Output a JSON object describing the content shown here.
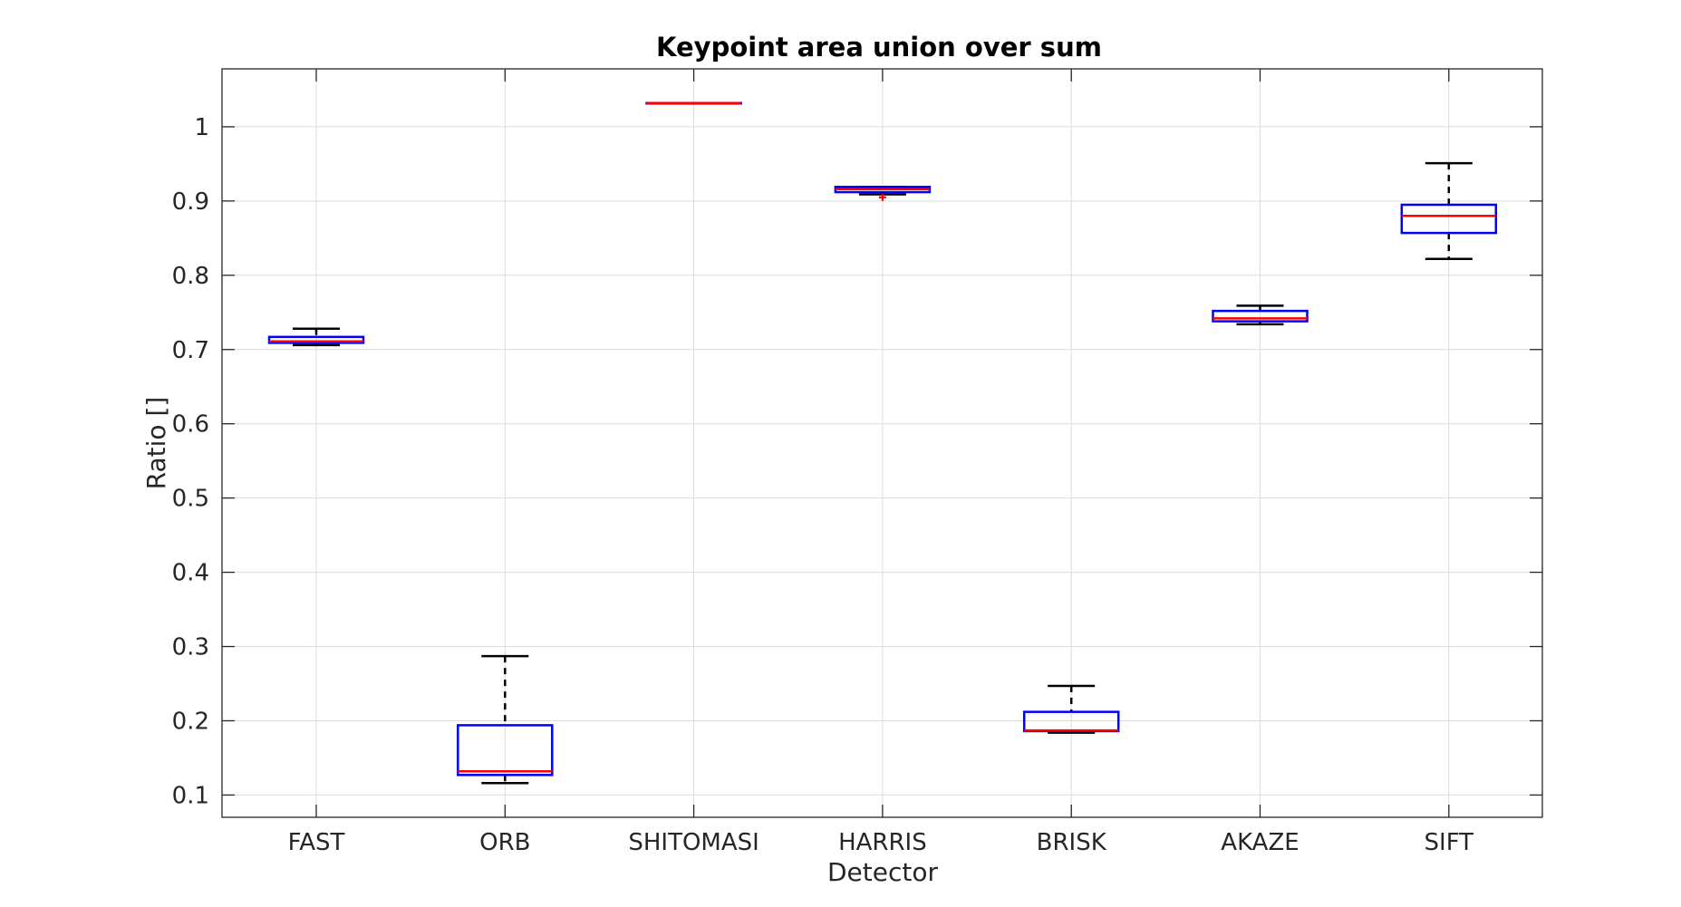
{
  "chart_data": {
    "type": "box",
    "title": "Keypoint area union over sum",
    "xlabel": "Detector",
    "ylabel": "Ratio []",
    "ylim": [
      0.07,
      1.078
    ],
    "yticks": [
      0.1,
      0.2,
      0.3,
      0.4,
      0.5,
      0.6,
      0.7,
      0.8,
      0.9,
      1
    ],
    "ytick_labels": [
      "0.1",
      "0.2",
      "0.3",
      "0.4",
      "0.5",
      "0.6",
      "0.7",
      "0.8",
      "0.9",
      "1"
    ],
    "grid": true,
    "categories": [
      "FAST",
      "ORB",
      "SHITOMASI",
      "HARRIS",
      "BRISK",
      "AKAZE",
      "SIFT"
    ],
    "boxes": [
      {
        "whisker_low": 0.706,
        "q1": 0.709,
        "median": 0.711,
        "q3": 0.717,
        "whisker_high": 0.728,
        "outliers": []
      },
      {
        "whisker_low": 0.116,
        "q1": 0.127,
        "median": 0.132,
        "q3": 0.194,
        "whisker_high": 0.287,
        "outliers": []
      },
      {
        "whisker_low": 1.032,
        "q1": 1.032,
        "median": 1.032,
        "q3": 1.032,
        "whisker_high": 1.032,
        "outliers": []
      },
      {
        "whisker_low": 0.909,
        "q1": 0.912,
        "median": 0.916,
        "q3": 0.919,
        "whisker_high": 0.919,
        "outliers": [
          0.905
        ]
      },
      {
        "whisker_low": 0.184,
        "q1": 0.186,
        "median": 0.187,
        "q3": 0.212,
        "whisker_high": 0.247,
        "outliers": []
      },
      {
        "whisker_low": 0.734,
        "q1": 0.738,
        "median": 0.742,
        "q3": 0.752,
        "whisker_high": 0.759,
        "outliers": []
      },
      {
        "whisker_low": 0.822,
        "q1": 0.857,
        "median": 0.88,
        "q3": 0.895,
        "whisker_high": 0.951,
        "outliers": []
      }
    ],
    "colors": {
      "box": "#0000ff",
      "median": "#ff0000",
      "whisker": "#000000",
      "outlier": "#ff0000"
    }
  }
}
